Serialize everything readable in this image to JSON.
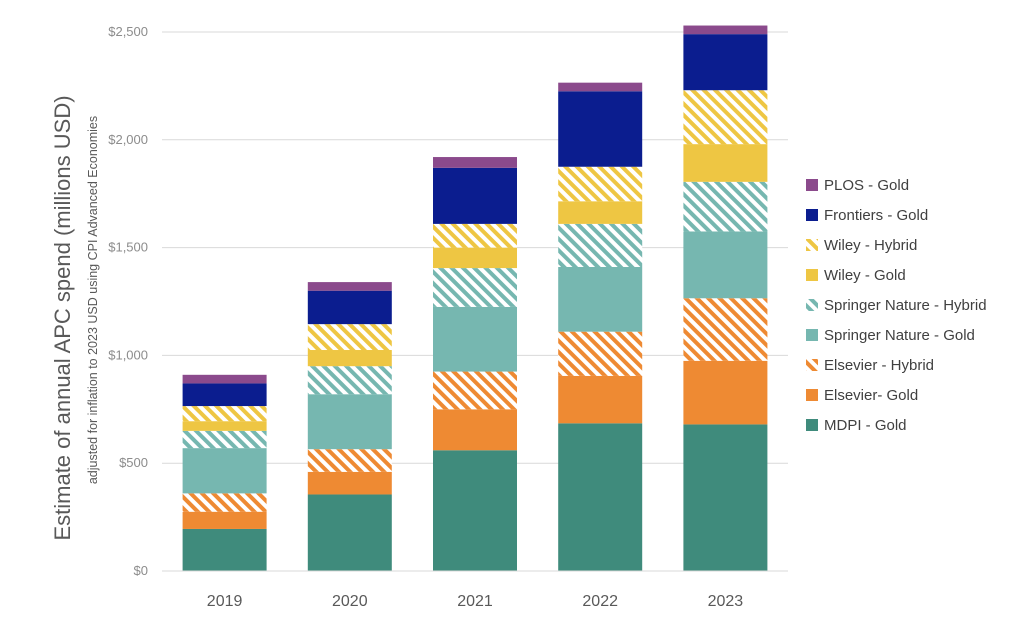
{
  "chart_data": {
    "type": "bar",
    "stacked": true,
    "categories": [
      "2019",
      "2020",
      "2021",
      "2022",
      "2023"
    ],
    "ylabel": "Estimate of annual APC spend (millions USD)",
    "ylabel_sub": "adjusted for inflation to 2023 USD using CPI Advanced Economies",
    "ylim": [
      0,
      2500
    ],
    "yticks": [
      {
        "value": 0,
        "label": "$0"
      },
      {
        "value": 500,
        "label": "$500"
      },
      {
        "value": 1000,
        "label": "$1,000"
      },
      {
        "value": 1500,
        "label": "$1,500"
      },
      {
        "value": 2000,
        "label": "$2,000"
      },
      {
        "value": 2500,
        "label": "$2,500"
      }
    ],
    "grid": true,
    "legend_position": "right",
    "series": [
      {
        "name": "MDPI - Gold",
        "color": "#3f8b7c",
        "pattern": "solid",
        "values": [
          195,
          355,
          560,
          685,
          680
        ]
      },
      {
        "name": "Elsevier- Gold",
        "color": "#ee8a33",
        "pattern": "solid",
        "values": [
          80,
          105,
          190,
          220,
          295
        ]
      },
      {
        "name": "Elsevier - Hybrid",
        "color": "#ee8a33",
        "pattern": "hatch",
        "values": [
          85,
          105,
          175,
          205,
          290
        ]
      },
      {
        "name": "Springer Nature - Gold",
        "color": "#76b7b0",
        "pattern": "solid",
        "values": [
          210,
          255,
          300,
          300,
          310
        ]
      },
      {
        "name": "Springer Nature - Hybrid",
        "color": "#76b7b0",
        "pattern": "hatch",
        "values": [
          80,
          130,
          180,
          200,
          230
        ]
      },
      {
        "name": "Wiley - Gold",
        "color": "#eec643",
        "pattern": "solid",
        "values": [
          45,
          75,
          95,
          105,
          175
        ]
      },
      {
        "name": "Wiley - Hybrid",
        "color": "#eec643",
        "pattern": "hatch",
        "values": [
          70,
          120,
          110,
          160,
          250
        ]
      },
      {
        "name": "Frontiers - Gold",
        "color": "#0b1d8f",
        "pattern": "solid",
        "values": [
          105,
          155,
          260,
          350,
          260
        ]
      },
      {
        "name": "PLOS - Gold",
        "color": "#8b4a8c",
        "pattern": "solid",
        "values": [
          40,
          40,
          50,
          40,
          40
        ]
      }
    ]
  }
}
